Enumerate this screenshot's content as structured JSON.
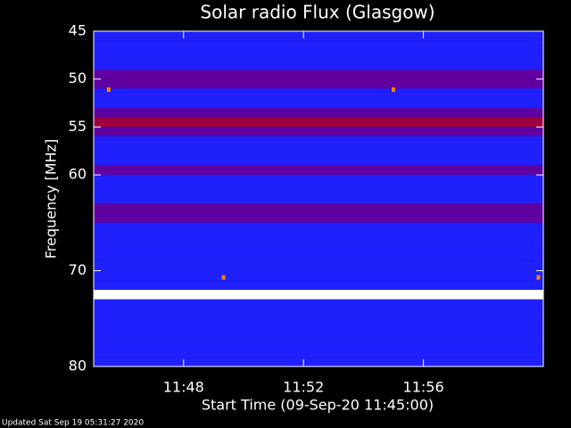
{
  "chart_data": {
    "type": "spectrogram",
    "title": "Solar radio Flux (Glasgow)",
    "y_label": "Frequency [MHz]",
    "x_label": "Start Time (09-Sep-20 11:45:00)",
    "footer": "Updated Sat Sep 19 05:31:27 2020",
    "xlim": [
      "11:45:00",
      "12:00:00"
    ],
    "xticks": [
      "11:48",
      "11:52",
      "11:56"
    ],
    "ylim": [
      45,
      80
    ],
    "yticks": [
      45,
      50,
      55,
      60,
      70,
      80
    ],
    "reverse_y": true,
    "colormap": [
      "#000060",
      "#0000c0",
      "#2020ff",
      "#6000a0",
      "#a00040",
      "#ff4000",
      "#ffd000",
      "#ffffff"
    ],
    "frequencies": [
      45.5,
      46.5,
      47.5,
      48.5,
      49.5,
      50.5,
      51.5,
      52.5,
      53.5,
      54.5,
      55.5,
      56.5,
      57.5,
      58.5,
      59.5,
      60.5,
      61.5,
      62.5,
      63.5,
      64.5,
      65.5,
      66.5,
      67.5,
      68.5,
      69.5,
      70.5,
      71.5,
      72.5,
      73.5,
      74.5,
      75.5,
      76.5,
      77.5,
      78.5,
      79.5
    ],
    "intensity": [
      0.3,
      0.35,
      0.3,
      0.4,
      0.55,
      0.45,
      0.4,
      0.35,
      0.45,
      0.6,
      0.45,
      0.3,
      0.35,
      0.4,
      0.5,
      0.3,
      0.3,
      0.3,
      0.45,
      0.55,
      0.3,
      0.3,
      0.35,
      0.3,
      0.3,
      0.35,
      0.35,
      1.0,
      0.4,
      0.3,
      0.35,
      0.3,
      0.3,
      0.3,
      0.3
    ],
    "bursts": {
      "color": "#ff8000",
      "x": [
        "11:45:30",
        "11:55:00",
        "11:49:20",
        "11:59:50"
      ],
      "y": [
        51.1,
        51.1,
        70.7,
        70.7
      ]
    }
  }
}
